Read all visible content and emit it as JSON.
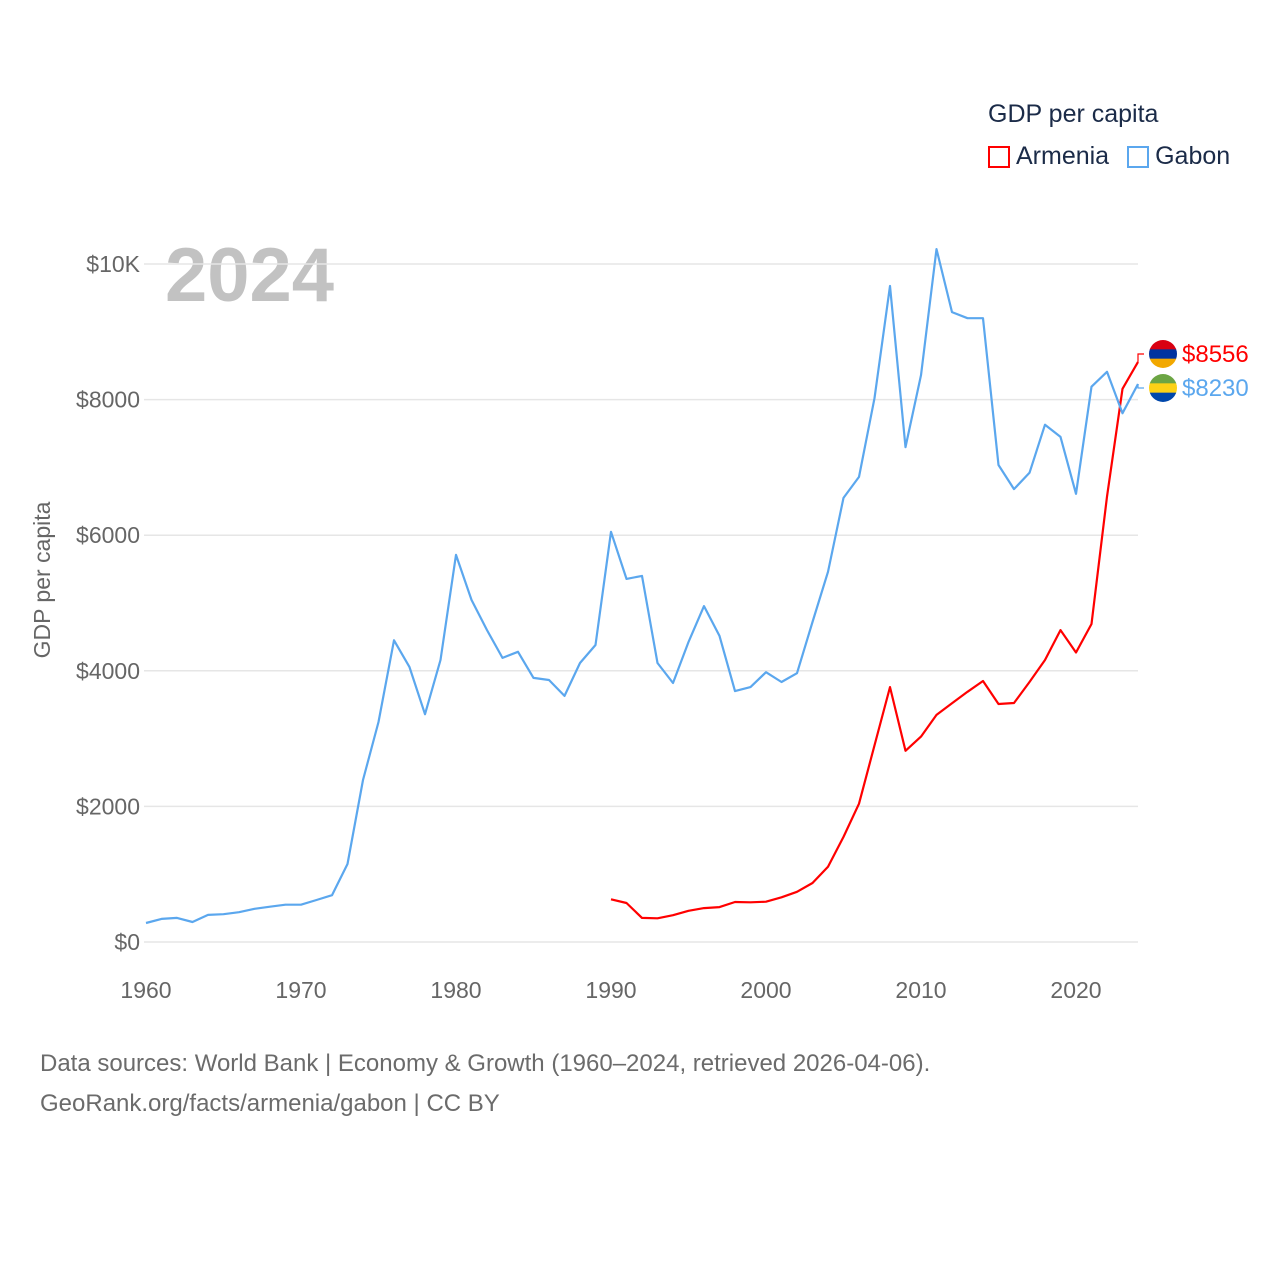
{
  "chart_data": {
    "type": "line",
    "title": "GDP per capita",
    "ylabel": "GDP per capita",
    "xlabel": "",
    "year_label": "2024",
    "xlim": [
      1960,
      2024
    ],
    "ylim": [
      0,
      10000
    ],
    "x_ticks": [
      1960,
      1970,
      1980,
      1990,
      2000,
      2010,
      2020
    ],
    "x_tick_labels": [
      "1960",
      "1970",
      "1980",
      "1990",
      "2000",
      "2010",
      "2020"
    ],
    "y_ticks": [
      0,
      2000,
      4000,
      6000,
      8000,
      10000
    ],
    "y_tick_labels": [
      "$0",
      "$2000",
      "$4000",
      "$6000",
      "$8000",
      "$10K"
    ],
    "grid": true,
    "legend_position": "top-right",
    "series": [
      {
        "name": "Armenia",
        "color": "#ff0000",
        "end_label": "$8556",
        "flag_colors": [
          "#d90012",
          "#0033a0",
          "#f2a800"
        ],
        "x_start": 1990,
        "values": [
          630,
          575,
          355,
          350,
          395,
          460,
          500,
          515,
          590,
          585,
          595,
          660,
          740,
          870,
          1110,
          1550,
          2040,
          2900,
          3760,
          2820,
          3030,
          3350,
          3520,
          3690,
          3850,
          3510,
          3525,
          3835,
          4160,
          4600,
          4270,
          4690,
          6570,
          8160,
          8556
        ]
      },
      {
        "name": "Gabon",
        "color": "#5ba7ee",
        "end_label": "$8230",
        "flag_colors": [
          "#6ca544",
          "#fcd116",
          "#0047ab"
        ],
        "x_start": 1960,
        "values": [
          280,
          340,
          355,
          295,
          400,
          410,
          440,
          490,
          520,
          550,
          550,
          620,
          690,
          1150,
          2390,
          3245,
          4450,
          4055,
          3360,
          4160,
          5710,
          5045,
          4600,
          4190,
          4280,
          3895,
          3865,
          3630,
          4115,
          4380,
          6050,
          5355,
          5400,
          4115,
          3820,
          4425,
          4955,
          4515,
          3700,
          3760,
          3980,
          3835,
          3965,
          4720,
          5460,
          6550,
          6860,
          8020,
          9675,
          7300,
          8360,
          10220,
          9290,
          9200,
          9200,
          7035,
          6680,
          6920,
          7630,
          7450,
          6610,
          8190,
          8410,
          7800,
          8230
        ]
      }
    ]
  },
  "legend": {
    "title": "GDP per capita",
    "items": [
      "Armenia",
      "Gabon"
    ]
  },
  "footer": {
    "line1": "Data sources: World Bank | Economy & Growth (1960–2024, retrieved 2026-04-06).",
    "line2": "GeoRank.org/facts/armenia/gabon | CC BY"
  }
}
